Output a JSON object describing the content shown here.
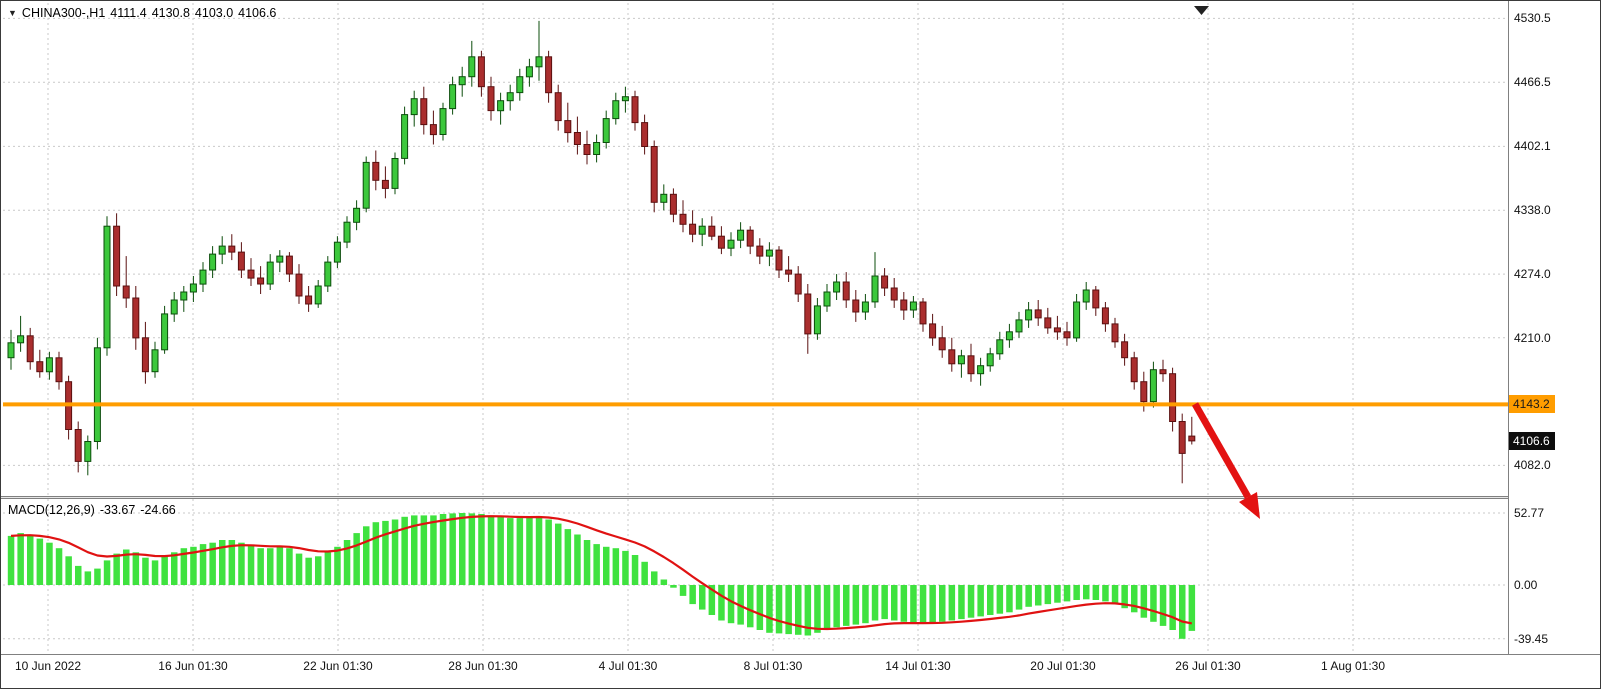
{
  "header": {
    "symbol_period": "CHINA300-,H1",
    "open": "4111.4",
    "high": "4130.8",
    "low": "4103.0",
    "close": "4106.6"
  },
  "macd_panel": {
    "label": "MACD(12,26,9)",
    "value_main": "-33.67",
    "value_signal": "-24.66"
  },
  "colors": {
    "candle_up": "#3cc83c",
    "candle_up_border": "#0b4d0b",
    "candle_down": "#aa2e2e",
    "candle_down_border": "#5a1010",
    "macd_bar": "#3fe23f",
    "macd_signal": "#e01212",
    "hline": "#ff9d00",
    "hline_tag_bg": "#ff9d00",
    "hline_tag_fg": "#1a1a1a",
    "last_tag_bg": "#0d0d0d",
    "last_tag_fg": "#ffffff",
    "arrow": "#e31212",
    "grid": "#c9c9c9"
  },
  "chart_data": [
    {
      "type": "candlestick",
      "title": "CHINA300-,H1",
      "x_labels": [
        "10 Jun 2022",
        "16 Jun 01:30",
        "22 Jun 01:30",
        "28 Jun 01:30",
        "4 Jul 01:30",
        "8 Jul 01:30",
        "14 Jul 01:30",
        "20 Jul 01:30",
        "26 Jul 01:30",
        "1 Aug 01:30"
      ],
      "y_ticks": [
        {
          "label": "4530.5",
          "value": 4530.5
        },
        {
          "label": "4466.5",
          "value": 4466.5
        },
        {
          "label": "4402.1",
          "value": 4402.1
        },
        {
          "label": "4338.0",
          "value": 4338.0
        },
        {
          "label": "4274.0",
          "value": 4274.0
        },
        {
          "label": "4210.0",
          "value": 4210.0
        },
        {
          "label": "4082.0",
          "value": 4082.0
        }
      ],
      "ylim": [
        4050,
        4546
      ],
      "hline": {
        "value": 4143.2,
        "label": "4143.2"
      },
      "last_price": {
        "value": 4106.6,
        "label": "4106.6"
      },
      "annotation": {
        "type": "arrow",
        "direction": "down-right",
        "from_price": 4143.2,
        "to_price": 4040,
        "color": "#e31212"
      },
      "ohlc": [
        [
          4190,
          4218,
          4178,
          4205
        ],
        [
          4205,
          4232,
          4196,
          4212
        ],
        [
          4212,
          4220,
          4178,
          4186
        ],
        [
          4186,
          4198,
          4170,
          4176
        ],
        [
          4176,
          4196,
          4168,
          4190
        ],
        [
          4190,
          4196,
          4158,
          4166
        ],
        [
          4166,
          4172,
          4108,
          4118
        ],
        [
          4118,
          4126,
          4075,
          4086
        ],
        [
          4086,
          4112,
          4072,
          4106
        ],
        [
          4106,
          4210,
          4098,
          4200
        ],
        [
          4200,
          4332,
          4192,
          4322
        ],
        [
          4322,
          4335,
          4252,
          4262
        ],
        [
          4262,
          4292,
          4240,
          4250
        ],
        [
          4250,
          4262,
          4198,
          4210
        ],
        [
          4210,
          4226,
          4164,
          4176
        ],
        [
          4176,
          4206,
          4170,
          4198
        ],
        [
          4198,
          4242,
          4194,
          4234
        ],
        [
          4234,
          4256,
          4226,
          4248
        ],
        [
          4248,
          4262,
          4236,
          4256
        ],
        [
          4256,
          4272,
          4246,
          4264
        ],
        [
          4264,
          4286,
          4256,
          4278
        ],
        [
          4278,
          4302,
          4270,
          4294
        ],
        [
          4294,
          4312,
          4284,
          4302
        ],
        [
          4302,
          4314,
          4288,
          4296
        ],
        [
          4296,
          4306,
          4270,
          4278
        ],
        [
          4278,
          4290,
          4262,
          4270
        ],
        [
          4270,
          4282,
          4254,
          4264
        ],
        [
          4264,
          4294,
          4258,
          4286
        ],
        [
          4286,
          4298,
          4276,
          4292
        ],
        [
          4292,
          4296,
          4266,
          4274
        ],
        [
          4274,
          4284,
          4244,
          4252
        ],
        [
          4252,
          4262,
          4236,
          4244
        ],
        [
          4244,
          4268,
          4240,
          4262
        ],
        [
          4262,
          4292,
          4256,
          4286
        ],
        [
          4286,
          4312,
          4280,
          4306
        ],
        [
          4306,
          4332,
          4300,
          4326
        ],
        [
          4326,
          4348,
          4318,
          4340
        ],
        [
          4340,
          4392,
          4336,
          4386
        ],
        [
          4386,
          4398,
          4358,
          4368
        ],
        [
          4368,
          4382,
          4350,
          4360
        ],
        [
          4360,
          4396,
          4354,
          4390
        ],
        [
          4390,
          4442,
          4384,
          4434
        ],
        [
          4434,
          4458,
          4422,
          4450
        ],
        [
          4450,
          4462,
          4414,
          4424
        ],
        [
          4424,
          4438,
          4404,
          4414
        ],
        [
          4414,
          4446,
          4408,
          4440
        ],
        [
          4440,
          4472,
          4434,
          4464
        ],
        [
          4464,
          4482,
          4452,
          4472
        ],
        [
          4472,
          4508,
          4462,
          4492
        ],
        [
          4492,
          4498,
          4452,
          4462
        ],
        [
          4462,
          4472,
          4428,
          4438
        ],
        [
          4438,
          4456,
          4424,
          4448
        ],
        [
          4448,
          4464,
          4438,
          4456
        ],
        [
          4456,
          4480,
          4448,
          4472
        ],
        [
          4472,
          4490,
          4462,
          4482
        ],
        [
          4482,
          4528,
          4468,
          4492
        ],
        [
          4492,
          4498,
          4446,
          4456
        ],
        [
          4456,
          4464,
          4418,
          4428
        ],
        [
          4428,
          4446,
          4406,
          4416
        ],
        [
          4416,
          4432,
          4394,
          4404
        ],
        [
          4404,
          4418,
          4384,
          4394
        ],
        [
          4394,
          4414,
          4386,
          4406
        ],
        [
          4406,
          4438,
          4400,
          4430
        ],
        [
          4430,
          4456,
          4424,
          4448
        ],
        [
          4448,
          4462,
          4436,
          4452
        ],
        [
          4452,
          4458,
          4418,
          4426
        ],
        [
          4426,
          4434,
          4394,
          4402
        ],
        [
          4402,
          4408,
          4336,
          4346
        ],
        [
          4346,
          4364,
          4338,
          4354
        ],
        [
          4354,
          4360,
          4326,
          4334
        ],
        [
          4334,
          4348,
          4316,
          4324
        ],
        [
          4324,
          4338,
          4306,
          4314
        ],
        [
          4314,
          4330,
          4302,
          4322
        ],
        [
          4322,
          4332,
          4308,
          4312
        ],
        [
          4312,
          4322,
          4294,
          4300
        ],
        [
          4300,
          4316,
          4292,
          4308
        ],
        [
          4308,
          4326,
          4300,
          4318
        ],
        [
          4318,
          4322,
          4294,
          4302
        ],
        [
          4302,
          4310,
          4284,
          4292
        ],
        [
          4292,
          4306,
          4282,
          4298
        ],
        [
          4298,
          4302,
          4270,
          4278
        ],
        [
          4278,
          4292,
          4266,
          4274
        ],
        [
          4274,
          4282,
          4246,
          4254
        ],
        [
          4254,
          4264,
          4194,
          4214
        ],
        [
          4214,
          4250,
          4208,
          4242
        ],
        [
          4242,
          4264,
          4236,
          4256
        ],
        [
          4256,
          4274,
          4248,
          4266
        ],
        [
          4266,
          4276,
          4240,
          4248
        ],
        [
          4248,
          4258,
          4226,
          4236
        ],
        [
          4236,
          4254,
          4228,
          4246
        ],
        [
          4246,
          4296,
          4240,
          4272
        ],
        [
          4272,
          4280,
          4252,
          4260
        ],
        [
          4260,
          4270,
          4240,
          4248
        ],
        [
          4248,
          4256,
          4228,
          4238
        ],
        [
          4238,
          4252,
          4230,
          4246
        ],
        [
          4246,
          4250,
          4216,
          4224
        ],
        [
          4224,
          4234,
          4202,
          4210
        ],
        [
          4210,
          4222,
          4190,
          4198
        ],
        [
          4198,
          4210,
          4176,
          4184
        ],
        [
          4184,
          4198,
          4170,
          4192
        ],
        [
          4192,
          4204,
          4166,
          4174
        ],
        [
          4174,
          4190,
          4162,
          4182
        ],
        [
          4182,
          4200,
          4176,
          4194
        ],
        [
          4194,
          4216,
          4188,
          4208
        ],
        [
          4208,
          4224,
          4200,
          4216
        ],
        [
          4216,
          4236,
          4210,
          4228
        ],
        [
          4228,
          4246,
          4220,
          4238
        ],
        [
          4238,
          4248,
          4222,
          4230
        ],
        [
          4230,
          4240,
          4214,
          4220
        ],
        [
          4220,
          4232,
          4208,
          4216
        ],
        [
          4216,
          4226,
          4202,
          4210
        ],
        [
          4210,
          4254,
          4206,
          4246
        ],
        [
          4246,
          4266,
          4238,
          4258
        ],
        [
          4258,
          4262,
          4232,
          4240
        ],
        [
          4240,
          4246,
          4216,
          4224
        ],
        [
          4224,
          4230,
          4200,
          4206
        ],
        [
          4206,
          4214,
          4182,
          4190
        ],
        [
          4190,
          4196,
          4158,
          4166
        ],
        [
          4166,
          4176,
          4136,
          4146
        ],
        [
          4146,
          4186,
          4140,
          4178
        ],
        [
          4178,
          4188,
          4166,
          4174
        ],
        [
          4174,
          4180,
          4116,
          4126
        ],
        [
          4126,
          4134,
          4064,
          4094
        ],
        [
          4111.4,
          4130.8,
          4103.0,
          4106.6
        ]
      ]
    },
    {
      "type": "bar",
      "name": "MACD(12,26,9)",
      "last_main": -33.67,
      "last_signal": -24.66,
      "ylim": [
        -39.45,
        52.77
      ],
      "y_ticks": [
        {
          "label": "52.77",
          "value": 52.77
        },
        {
          "label": "0.00",
          "value": 0
        },
        {
          "label": "-39.45",
          "value": -39.45
        }
      ],
      "values": [
        36,
        38,
        37,
        34,
        31,
        27,
        21,
        14,
        10,
        12,
        18,
        23,
        26,
        24,
        20,
        18,
        21,
        24,
        27,
        28,
        30,
        31,
        33,
        33,
        31,
        29,
        27,
        27,
        28,
        27,
        23,
        20,
        21,
        24,
        28,
        33,
        38,
        43,
        46,
        47,
        48,
        50,
        51,
        51,
        51,
        52,
        52.5,
        52.77,
        52.5,
        52,
        51,
        50,
        49,
        49,
        49.5,
        50,
        48,
        45,
        41,
        37,
        33,
        30,
        28,
        27,
        25,
        22,
        17,
        10,
        4,
        -2,
        -8,
        -14,
        -18,
        -22,
        -26,
        -28,
        -29,
        -31,
        -33,
        -35,
        -35.5,
        -36,
        -36.5,
        -37,
        -35,
        -33,
        -31,
        -30,
        -29,
        -28,
        -26,
        -25,
        -26,
        -27,
        -28,
        -28,
        -27.5,
        -27,
        -26,
        -25,
        -24,
        -23,
        -22,
        -21,
        -20,
        -18,
        -16,
        -15,
        -14,
        -13,
        -12,
        -11,
        -10.5,
        -11,
        -12,
        -14,
        -17,
        -20,
        -24,
        -27,
        -30,
        -33,
        -39.45,
        -33.67
      ]
    }
  ]
}
